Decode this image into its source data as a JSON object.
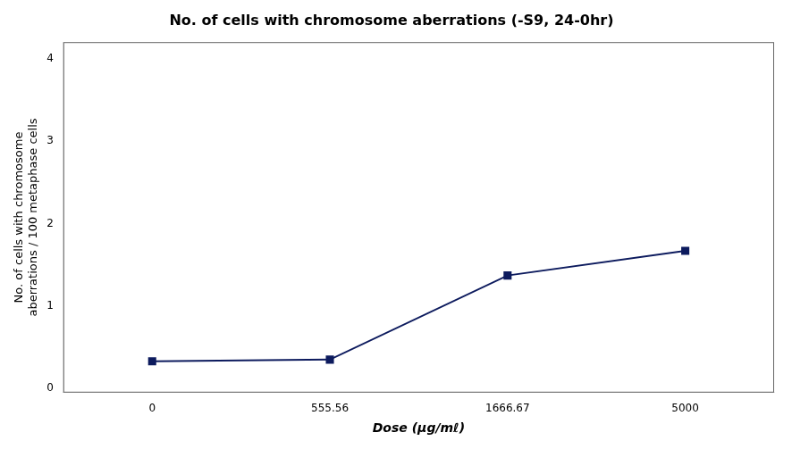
{
  "chart_data": {
    "type": "line",
    "title": "No. of cells with chromosome aberrations (-S9, 24-0hr)",
    "x_label": "Dose (μg/mℓ)",
    "y_label": "No. of cells with chromosome\naberrations / 100 metaphase cells",
    "categories": [
      "0",
      "555.56",
      "1666.67",
      "5000"
    ],
    "values": [
      0.33,
      0.35,
      1.37,
      1.67
    ],
    "color": "#0d1b5e",
    "marker": "square",
    "ylim": [
      -0.05,
      4.2
    ],
    "yticks": [
      0,
      1,
      2,
      3,
      4
    ],
    "grid": false
  }
}
